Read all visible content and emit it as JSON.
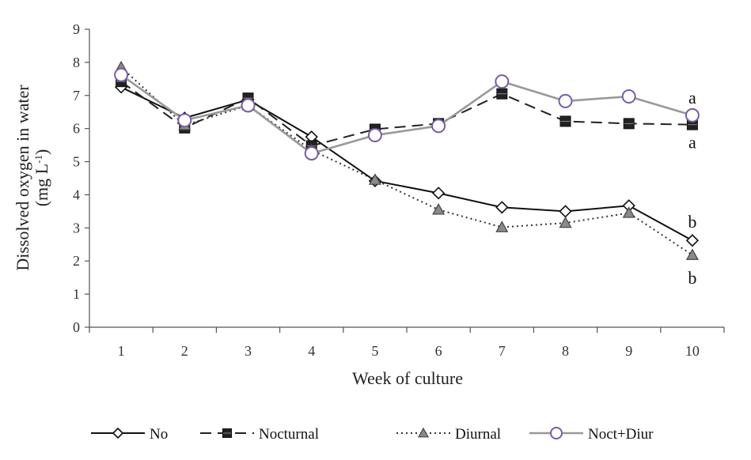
{
  "chart_data": {
    "type": "line",
    "title": "",
    "xlabel": "Week of culture",
    "ylabel": "Dissolved oxygen in water",
    "ylabel_unit": "(mg L",
    "ylabel_unit_sup": "-1",
    "ylabel_unit_close": ")",
    "x": [
      1,
      2,
      3,
      4,
      5,
      6,
      7,
      8,
      9,
      10
    ],
    "x_tick_labels": [
      "1",
      "2",
      "3",
      "4",
      "5",
      "6",
      "7",
      "8",
      "9",
      "10"
    ],
    "ylim": [
      0,
      9
    ],
    "y_ticks": [
      0,
      1,
      2,
      3,
      4,
      5,
      6,
      7,
      8,
      9
    ],
    "y_tick_labels": [
      "0",
      "1",
      "2",
      "3",
      "4",
      "5",
      "6",
      "7",
      "8",
      "9"
    ],
    "grid": false,
    "legend_position": "bottom",
    "series": [
      {
        "name": "No",
        "key": "no",
        "color": "#111111",
        "line_style": "solid",
        "marker": "diamond-open",
        "values": [
          7.25,
          6.32,
          6.87,
          5.75,
          4.42,
          4.05,
          3.62,
          3.5,
          3.67,
          2.62
        ]
      },
      {
        "name": "Nocturnal",
        "key": "nocturnal",
        "color": "#222222",
        "line_style": "dashed",
        "marker": "square-filled",
        "values": [
          7.42,
          6.02,
          6.92,
          5.48,
          5.98,
          6.15,
          7.05,
          6.22,
          6.15,
          6.12
        ]
      },
      {
        "name": "Diurnal",
        "key": "diurnal",
        "color": "#333333",
        "line_style": "dotted",
        "marker": "triangle-gray",
        "values": [
          7.85,
          6.1,
          6.7,
          5.35,
          4.45,
          3.55,
          3.02,
          3.15,
          3.45,
          2.18
        ]
      },
      {
        "name": "Noct+Diur",
        "key": "noct_diur",
        "color": "#999999",
        "line_style": "solid",
        "marker": "circle-open-purple",
        "marker_color": "#7a5ca8",
        "values": [
          7.62,
          6.25,
          6.7,
          5.25,
          5.8,
          6.08,
          7.42,
          6.83,
          6.97,
          6.4
        ]
      }
    ],
    "annotations": [
      {
        "text": "a",
        "x": 10,
        "y": 6.95
      },
      {
        "text": "a",
        "x": 10,
        "y": 5.6
      },
      {
        "text": "b",
        "x": 10,
        "y": 3.2
      },
      {
        "text": "b",
        "x": 10,
        "y": 1.5
      }
    ]
  }
}
